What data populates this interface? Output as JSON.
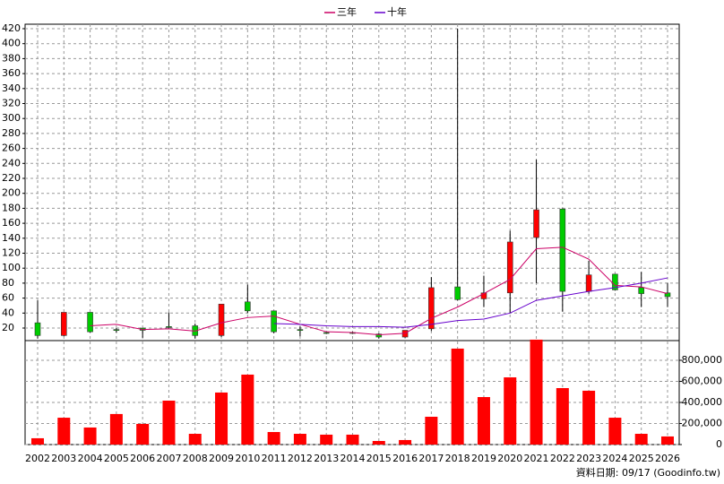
{
  "chart_data": [
    {
      "type": "candlestick",
      "categories": [
        "2002",
        "2003",
        "2004",
        "2005",
        "2006",
        "2007",
        "2008",
        "2009",
        "2010",
        "2011",
        "2012",
        "2013",
        "2014",
        "2015",
        "2016",
        "2017",
        "2018",
        "2019",
        "2020",
        "2021",
        "2022",
        "2023",
        "2024",
        "2025",
        "2026"
      ],
      "open": [
        27,
        10,
        41,
        18,
        20,
        22,
        23,
        10,
        55,
        43,
        18,
        14,
        14,
        12,
        8,
        19,
        75,
        59,
        67,
        141,
        179,
        69,
        92,
        74,
        67
      ],
      "high": [
        57,
        41,
        41,
        20,
        20,
        41,
        26,
        52,
        78,
        43,
        22,
        15,
        15,
        13,
        17,
        88,
        420,
        90,
        150,
        245,
        180,
        110,
        92,
        95,
        80
      ],
      "low": [
        6,
        9,
        14,
        14,
        7,
        19,
        6,
        8,
        40,
        13,
        9,
        12,
        12,
        6,
        7,
        16,
        57,
        48,
        40,
        80,
        42,
        66,
        70,
        48,
        48
      ],
      "close": [
        10,
        41,
        15,
        17,
        17,
        21,
        10,
        52,
        43,
        15,
        17,
        13,
        13,
        8,
        17,
        74,
        58,
        67,
        135,
        178,
        69,
        91,
        71,
        66,
        62
      ],
      "up_color": "#ff0000",
      "down_color": "#00cc00",
      "series": [
        {
          "name": "三年",
          "color": "#cc0066",
          "values": [
            null,
            null,
            23,
            25,
            18,
            19,
            16,
            27,
            34,
            36,
            25,
            15,
            14,
            11,
            13,
            33,
            48,
            66,
            85,
            126,
            128,
            112,
            77,
            75,
            66
          ]
        },
        {
          "name": "十年",
          "color": "#6600cc",
          "values": [
            null,
            null,
            null,
            null,
            null,
            null,
            null,
            null,
            null,
            26,
            25,
            23,
            22,
            22,
            21,
            25,
            30,
            32,
            40,
            57,
            63,
            69,
            74,
            80,
            87
          ]
        }
      ],
      "ylim": [
        0,
        426
      ],
      "yticks": [
        20,
        40,
        60,
        80,
        100,
        120,
        140,
        160,
        180,
        200,
        220,
        240,
        260,
        280,
        300,
        320,
        340,
        360,
        380,
        400,
        420
      ],
      "grid": true,
      "legend": "top"
    },
    {
      "type": "bar",
      "color": "#ff0000",
      "values": [
        60000,
        255000,
        162000,
        290000,
        196000,
        417000,
        102000,
        494000,
        664000,
        119000,
        102000,
        94000,
        94000,
        34000,
        43000,
        264000,
        911000,
        451000,
        638000,
        996000,
        536000,
        511000,
        255000,
        102000,
        77000
      ],
      "y2lim": [
        0,
        987000
      ],
      "y2ticks": [
        0,
        {
          "value": 200000,
          "label": "200,000"
        },
        {
          "value": 400000,
          "label": "400,000"
        },
        {
          "value": 600000,
          "label": "600,000"
        },
        {
          "value": 800000,
          "label": "800,000"
        }
      ],
      "grid": true,
      "source_note": "資料日期: 09/17  (Goodinfo.tw)"
    }
  ]
}
